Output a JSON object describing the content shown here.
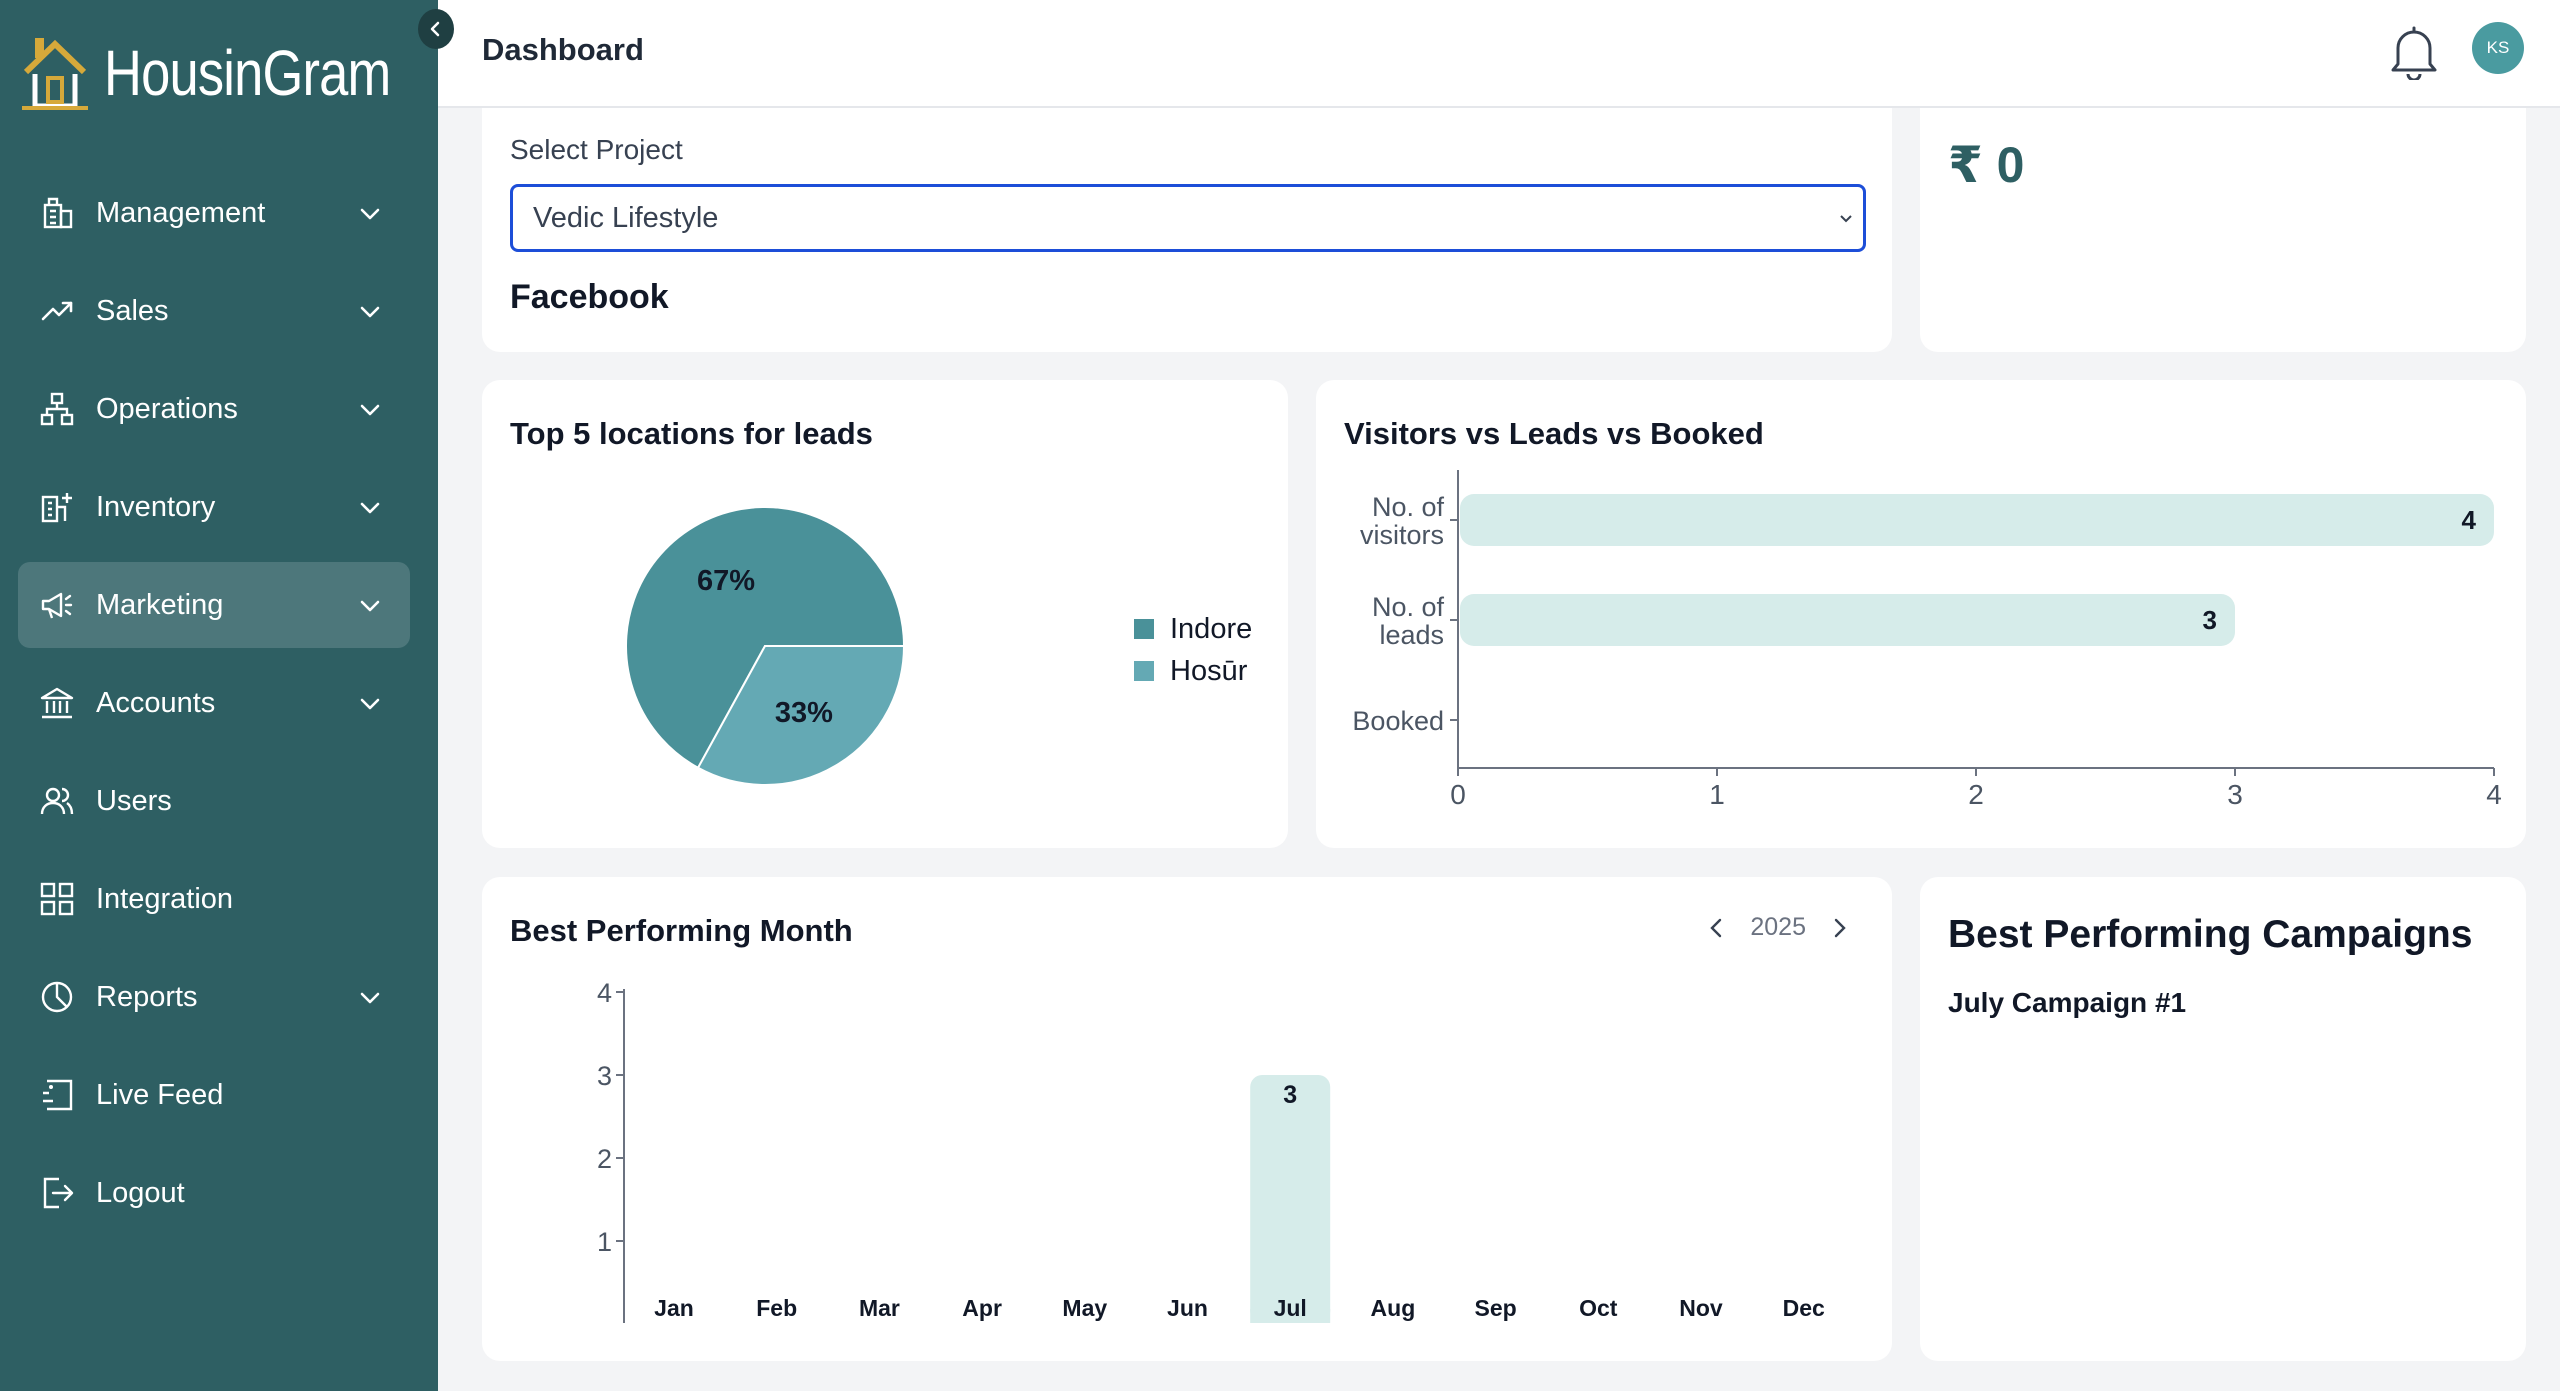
{
  "app": {
    "name": "HousinGram",
    "user_initials": "KS"
  },
  "header": {
    "title": "Dashboard"
  },
  "sidebar": {
    "items": [
      {
        "label": "Management",
        "icon": "building-icon",
        "expandable": true,
        "active": false
      },
      {
        "label": "Sales",
        "icon": "trending-up-icon",
        "expandable": true,
        "active": false
      },
      {
        "label": "Operations",
        "icon": "hierarchy-icon",
        "expandable": true,
        "active": false
      },
      {
        "label": "Inventory",
        "icon": "building-add-icon",
        "expandable": true,
        "active": false
      },
      {
        "label": "Marketing",
        "icon": "megaphone-icon",
        "expandable": true,
        "active": true
      },
      {
        "label": "Accounts",
        "icon": "bank-icon",
        "expandable": true,
        "active": false
      },
      {
        "label": "Users",
        "icon": "users-icon",
        "expandable": false,
        "active": false
      },
      {
        "label": "Integration",
        "icon": "grid-icon",
        "expandable": false,
        "active": false
      },
      {
        "label": "Reports",
        "icon": "pie-chart-icon",
        "expandable": true,
        "active": false
      },
      {
        "label": "Live Feed",
        "icon": "live-feed-icon",
        "expandable": false,
        "active": false
      },
      {
        "label": "Logout",
        "icon": "logout-icon",
        "expandable": false,
        "active": false
      }
    ]
  },
  "project": {
    "select_label": "Select Project",
    "selected": "Vedic Lifestyle",
    "source": "Facebook"
  },
  "revenue": {
    "value": "₹ 0"
  },
  "colors": {
    "sidebar": "#2e5f63",
    "active": "#4d777b",
    "pie_indore": "#4a9199",
    "pie_hosur": "#64a9b4",
    "bar_fill": "#d6ecea",
    "select_border": "#1d4ed8"
  },
  "chart_data": [
    {
      "type": "pie",
      "title": "Top 5 locations for leads",
      "categories": [
        "Indore",
        "Hosūr"
      ],
      "values": [
        67,
        33
      ],
      "labels": [
        "67%",
        "33%"
      ],
      "legend": "right"
    },
    {
      "type": "bar",
      "orientation": "horizontal",
      "title": "Visitors vs Leads vs Booked",
      "categories": [
        [
          "No. of",
          "visitors"
        ],
        [
          "No. of",
          "leads"
        ],
        [
          "Booked"
        ]
      ],
      "values": [
        4,
        3,
        0
      ],
      "xlim": [
        0,
        4
      ],
      "xticks": [
        0,
        1,
        2,
        3,
        4
      ]
    },
    {
      "type": "bar",
      "title": "Best Performing Month",
      "year": "2025",
      "categories": [
        "Jan",
        "Feb",
        "Mar",
        "Apr",
        "May",
        "Jun",
        "Jul",
        "Aug",
        "Sep",
        "Oct",
        "Nov",
        "Dec"
      ],
      "values": [
        0,
        0,
        0,
        0,
        0,
        0,
        3,
        0,
        0,
        0,
        0,
        0
      ],
      "yticks": [
        1,
        2,
        3,
        4
      ],
      "ylim": [
        0,
        4
      ]
    }
  ],
  "campaigns": {
    "title": "Best Performing Campaigns",
    "items": [
      "July Campaign #1"
    ]
  }
}
